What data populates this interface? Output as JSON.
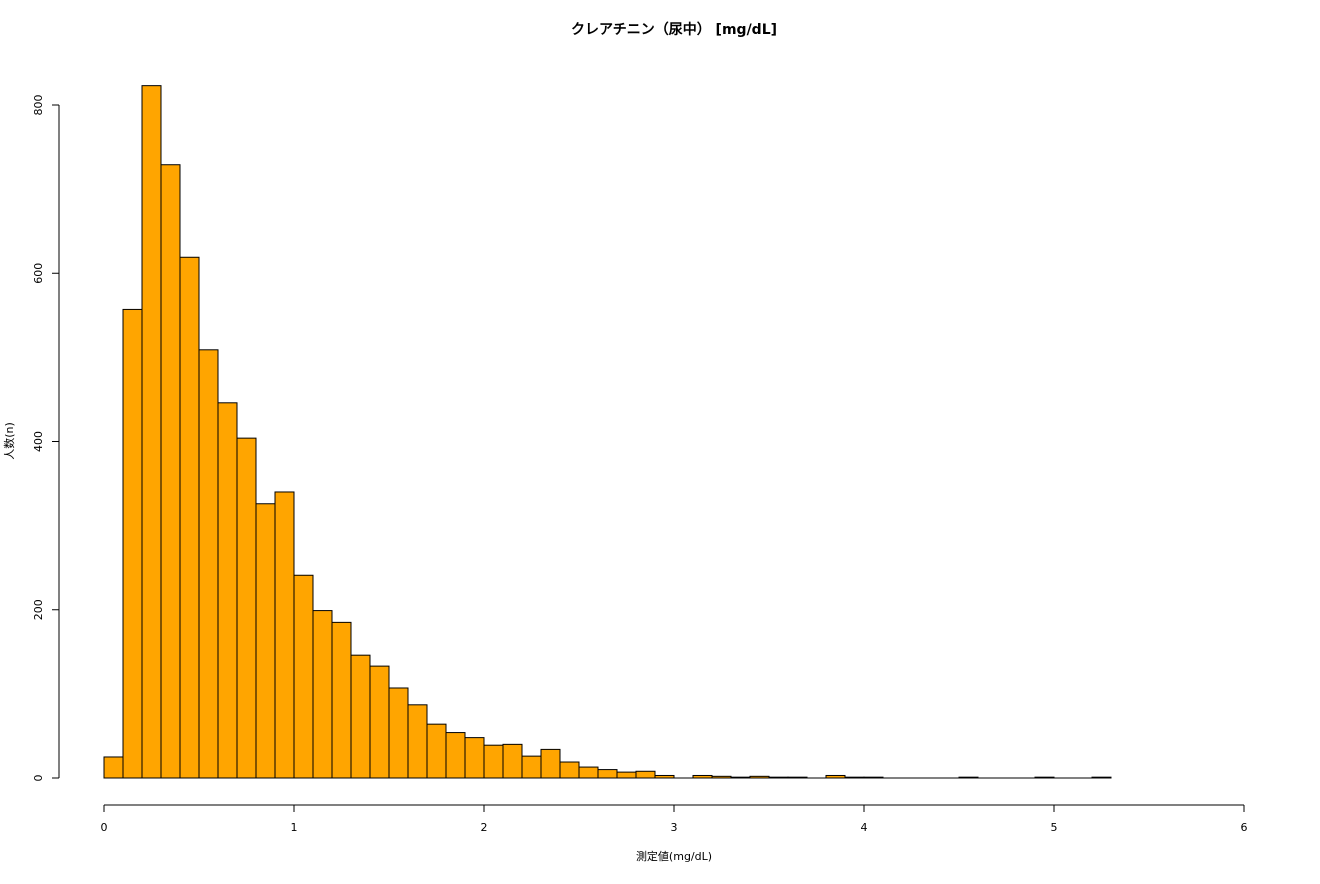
{
  "chart_data": {
    "type": "histogram",
    "title": "クレアチニン（尿中） [mg/dL]",
    "x_label": "測定値(mg/dL)",
    "y_label": "人数(n)",
    "bins": [
      0,
      0.1,
      0.2,
      0.3,
      0.4,
      0.5,
      0.6,
      0.7,
      0.8,
      0.9,
      1.0,
      1.1,
      1.2,
      1.3,
      1.4,
      1.5,
      1.6,
      1.7,
      1.8,
      1.9,
      2.0,
      2.1,
      2.2,
      2.3,
      2.4,
      2.5,
      2.6,
      2.7,
      2.8,
      2.9,
      3.0,
      3.1,
      3.2,
      3.3,
      3.4,
      3.5,
      3.6,
      3.7,
      3.8,
      3.9,
      4.0,
      4.1,
      4.2,
      4.3,
      4.4,
      4.5,
      4.6,
      4.7,
      4.8,
      4.9,
      5.0,
      5.1,
      5.2,
      5.3
    ],
    "values": [
      25,
      557,
      823,
      729,
      619,
      509,
      446,
      404,
      326,
      340,
      241,
      199,
      185,
      146,
      133,
      107,
      87,
      64,
      54,
      48,
      39,
      40,
      26,
      34,
      19,
      13,
      10,
      7,
      8,
      3,
      0,
      3,
      2,
      1,
      2,
      1,
      1,
      0,
      3,
      1,
      1,
      0,
      0,
      0,
      0,
      1,
      0,
      0,
      0,
      1,
      0,
      0,
      1
    ],
    "color": "#ffa500",
    "xlim": [
      0,
      6
    ],
    "xticks": [
      0,
      1,
      2,
      3,
      4,
      5,
      6
    ],
    "ylim": [
      0,
      840
    ],
    "yticks": [
      0,
      200,
      400,
      600,
      800
    ]
  }
}
